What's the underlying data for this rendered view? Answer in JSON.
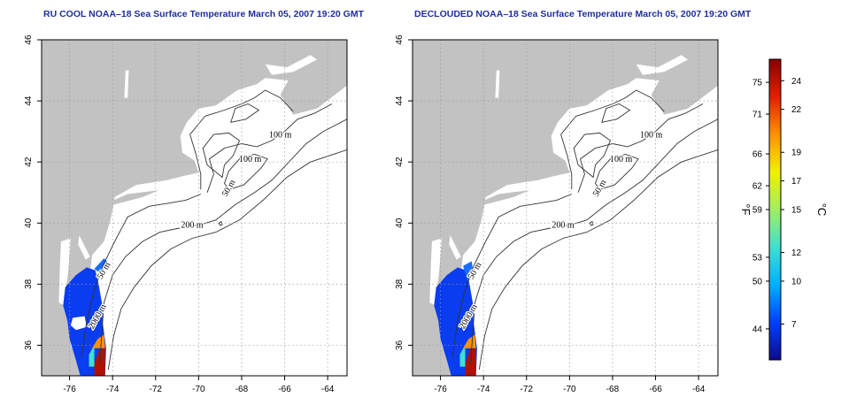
{
  "maps": [
    {
      "title": "RU COOL NOAA–18 Sea Surface Temperature March 05, 2007 19:20 GMT",
      "contour_labels": [
        "100 m",
        "100 m",
        "50 m",
        "200 m",
        "50 m",
        "2000 m"
      ]
    },
    {
      "title": "DECLOUDED NOAA–18 Sea Surface Temperature March 05, 2007 19:20 GMT",
      "contour_labels": [
        "100 m",
        "100 m",
        "50 m",
        "200 m",
        "50 m",
        "2000 m"
      ]
    }
  ],
  "axes": {
    "x_ticks": [
      "-76",
      "-74",
      "-72",
      "-70",
      "-68",
      "-66",
      "-64"
    ],
    "y_ticks": [
      "36",
      "38",
      "40",
      "42",
      "44",
      "46"
    ],
    "lon_range": [
      -77.3,
      -63.1
    ],
    "lat_range": [
      35.0,
      46.0
    ],
    "grid": "dotted"
  },
  "colorbar": {
    "fahrenheit_ticks": [
      "75",
      "71",
      "66",
      "62",
      "59",
      "53",
      "50",
      "44"
    ],
    "celsius_ticks": [
      "24",
      "22",
      "19",
      "17",
      "15",
      "12",
      "10",
      "7"
    ],
    "fahrenheit_label": "°F",
    "celsius_label": "°C",
    "celsius_range": [
      4.5,
      25.5
    ],
    "colors": [
      "#0d0a8c",
      "#0040ff",
      "#00b0ff",
      "#40e0d0",
      "#a0f060",
      "#f0f000",
      "#ff9000",
      "#e02000",
      "#8a0000"
    ]
  },
  "colors": {
    "land": "#c2c2c2",
    "ocean": "#ffffff",
    "contour": "#333333",
    "title": "#1f2f9a"
  }
}
